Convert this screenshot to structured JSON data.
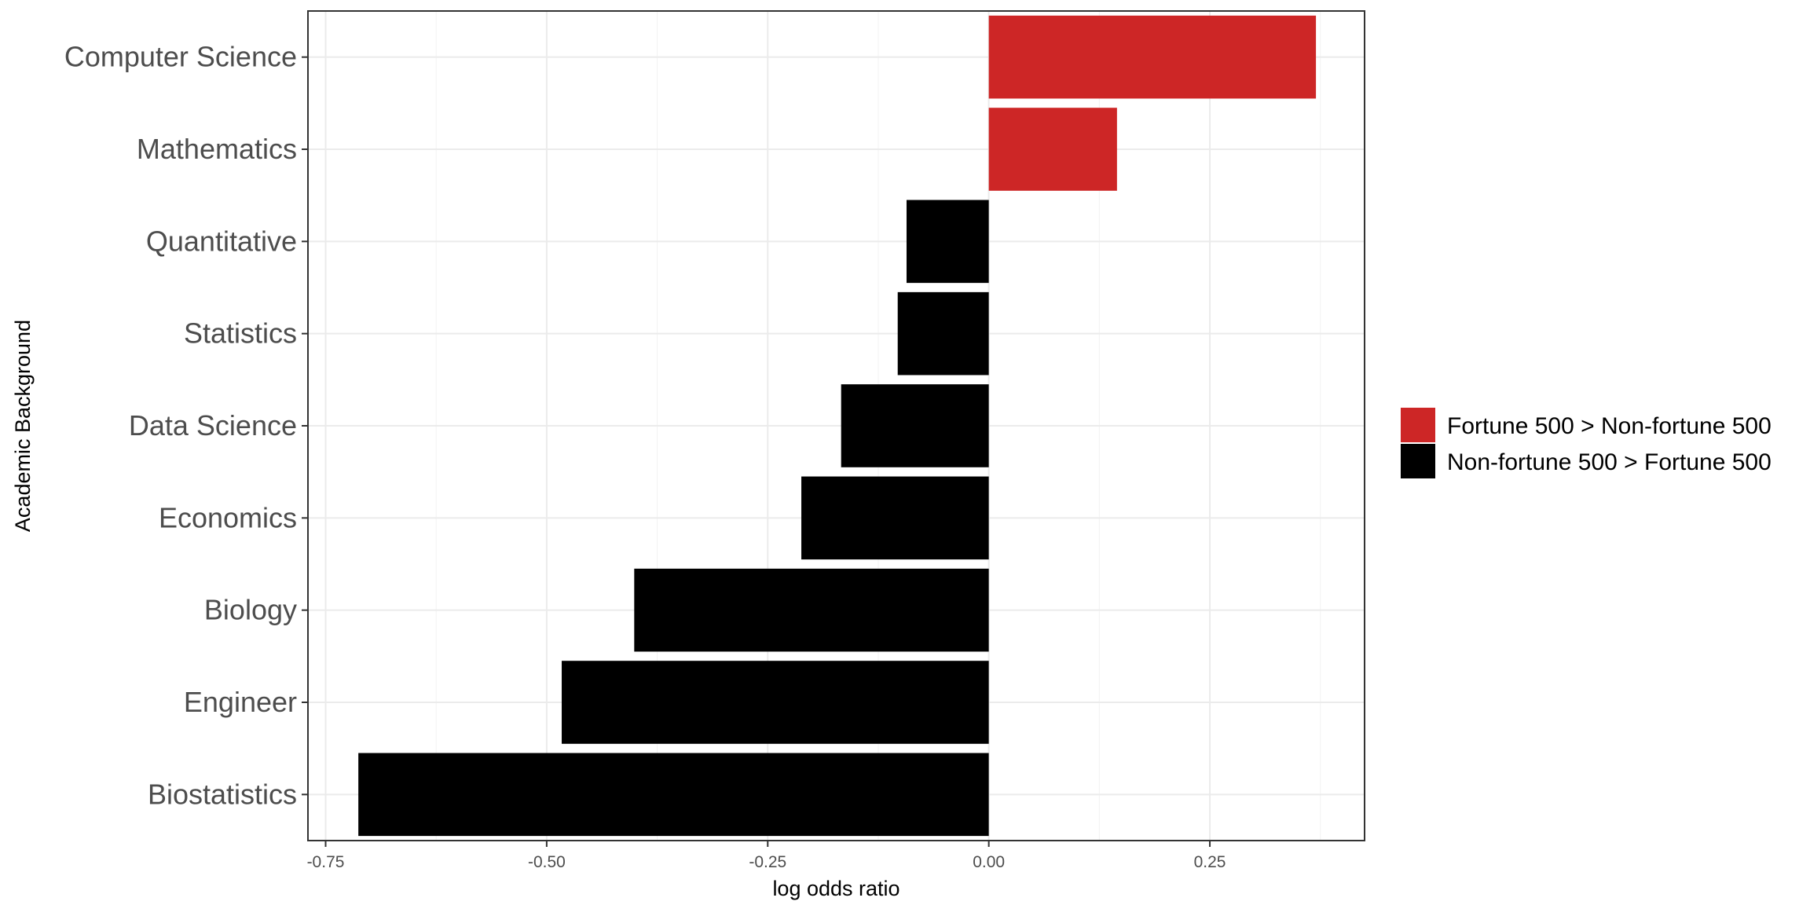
{
  "chart_data": {
    "type": "bar",
    "orientation": "horizontal",
    "categories": [
      "Computer Science",
      "Mathematics",
      "Quantitative",
      "Statistics",
      "Data Science",
      "Economics",
      "Biology",
      "Engineer",
      "Biostatistics"
    ],
    "values": [
      0.37,
      0.145,
      -0.093,
      -0.103,
      -0.167,
      -0.212,
      -0.401,
      -0.483,
      -0.713
    ],
    "groups": [
      "Fortune 500 > Non-fortune 500",
      "Fortune 500 > Non-fortune 500",
      "Non-fortune 500 > Fortune 500",
      "Non-fortune 500 > Fortune 500",
      "Non-fortune 500 > Fortune 500",
      "Non-fortune 500 > Fortune 500",
      "Non-fortune 500 > Fortune 500",
      "Non-fortune 500 > Fortune 500",
      "Non-fortune 500 > Fortune 500"
    ],
    "xlabel": "log odds ratio",
    "ylabel": "Academic Background",
    "xlim": [
      -0.77,
      0.425
    ],
    "xticks": [
      -0.75,
      -0.5,
      -0.25,
      0.0,
      0.25
    ],
    "xtick_labels": [
      "-0.75",
      "-0.50",
      "-0.25",
      "0.00",
      "0.25"
    ],
    "grid": true,
    "legend": {
      "position": "right",
      "entries": [
        {
          "label": "Fortune 500 > Non-fortune 500",
          "color": "#cd2626"
        },
        {
          "label": "Non-fortune 500 > Fortune 500",
          "color": "#000000"
        }
      ]
    }
  }
}
